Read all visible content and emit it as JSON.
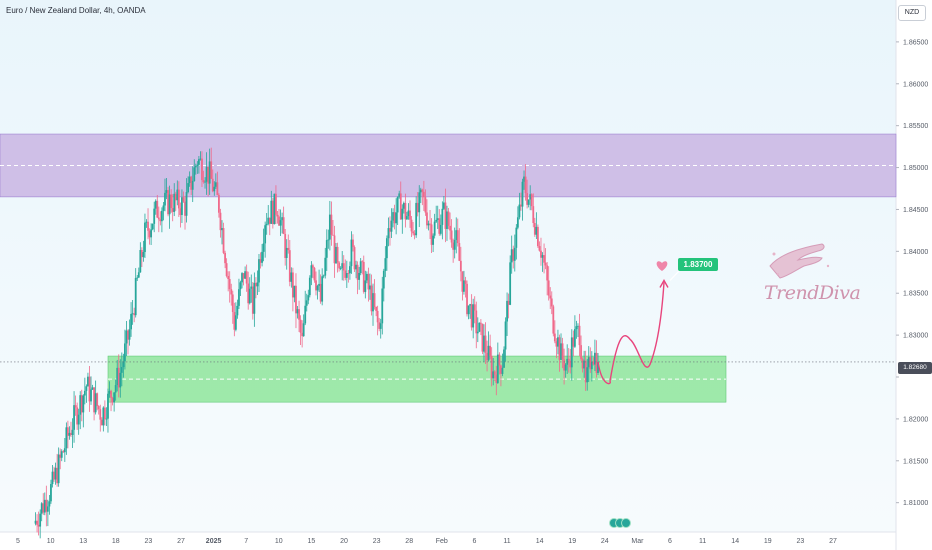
{
  "header": {
    "title": "Euro / New Zealand Dollar, 4h, OANDA",
    "currency_button": "NZD"
  },
  "price_tag": "1.82680",
  "target_label": "1.83700",
  "watermark": {
    "name": "TrendDiva",
    "text_prefix": "Trend",
    "text_suffix": "Diva"
  },
  "colors": {
    "bull": "#26a69a",
    "bear": "#f0698a",
    "resistance_zone": "#c9b5e3",
    "support_zone": "#8ee59b",
    "projection": "#e8457d"
  },
  "chart_data": {
    "type": "candlestick",
    "symbol": "EURNZD",
    "timeframe": "4h",
    "y_ticks": [
      1.81,
      1.815,
      1.82,
      1.825,
      1.83,
      1.835,
      1.84,
      1.845,
      1.85,
      1.855,
      1.86,
      1.865
    ],
    "y_tick_labels": [
      "1.81000",
      "1.81500",
      "1.82000",
      "",
      "1.83000",
      "1.83500",
      "1.84000",
      "1.84500",
      "1.85000",
      "1.85500",
      "1.86000",
      "1.86500"
    ],
    "ylim": [
      1.8065,
      1.87
    ],
    "x_tick_labels": [
      "5",
      "10",
      "13",
      "18",
      "23",
      "27",
      "2025",
      "7",
      "10",
      "15",
      "20",
      "23",
      "28",
      "Feb",
      "6",
      "11",
      "14",
      "19",
      "24",
      "Mar",
      "6",
      "11",
      "14",
      "19",
      "23",
      "27"
    ],
    "close_price": 1.8268,
    "resistance_zone": [
      1.8465,
      1.854
    ],
    "support_zone": [
      1.822,
      1.8275
    ],
    "target": 1.837,
    "price_path": [
      [
        0,
        1.8075
      ],
      [
        12,
        1.812
      ],
      [
        22,
        1.818
      ],
      [
        34,
        1.824
      ],
      [
        44,
        1.8205
      ],
      [
        56,
        1.8255
      ],
      [
        62,
        1.8305
      ],
      [
        72,
        1.842
      ],
      [
        80,
        1.845
      ],
      [
        88,
        1.846
      ],
      [
        98,
        1.8455
      ],
      [
        106,
        1.851
      ],
      [
        114,
        1.849
      ],
      [
        120,
        1.8455
      ],
      [
        126,
        1.837
      ],
      [
        130,
        1.8315
      ],
      [
        136,
        1.8375
      ],
      [
        142,
        1.8335
      ],
      [
        150,
        1.844
      ],
      [
        158,
        1.8455
      ],
      [
        166,
        1.8375
      ],
      [
        174,
        1.829
      ],
      [
        180,
        1.8395
      ],
      [
        186,
        1.834
      ],
      [
        192,
        1.8435
      ],
      [
        198,
        1.8365
      ],
      [
        206,
        1.84
      ],
      [
        212,
        1.8375
      ],
      [
        218,
        1.835
      ],
      [
        224,
        1.8305
      ],
      [
        230,
        1.8435
      ],
      [
        238,
        1.8455
      ],
      [
        246,
        1.843
      ],
      [
        252,
        1.8465
      ],
      [
        258,
        1.8425
      ],
      [
        266,
        1.8445
      ],
      [
        274,
        1.841
      ],
      [
        280,
        1.8345
      ],
      [
        286,
        1.8315
      ],
      [
        292,
        1.829
      ],
      [
        298,
        1.8255
      ],
      [
        304,
        1.827
      ],
      [
        310,
        1.839
      ],
      [
        318,
        1.848
      ],
      [
        324,
        1.8445
      ],
      [
        330,
        1.8395
      ],
      [
        336,
        1.8325
      ],
      [
        342,
        1.8275
      ],
      [
        346,
        1.8262
      ],
      [
        350,
        1.8295
      ],
      [
        354,
        1.8305
      ],
      [
        358,
        1.8235
      ],
      [
        362,
        1.8282
      ],
      [
        366,
        1.8268
      ]
    ],
    "projection": [
      1.8268,
      1.8245,
      1.8295,
      1.8265,
      1.837
    ]
  }
}
